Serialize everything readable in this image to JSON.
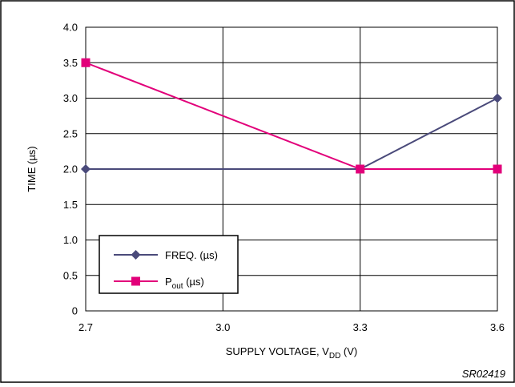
{
  "chart_data": {
    "type": "line",
    "x": [
      2.7,
      3.3,
      3.6
    ],
    "xlabel_main": "SUPPLY VOLTAGE, V",
    "xlabel_sub": "DD",
    "xlabel_tail": " (V)",
    "ylabel": "TIME (µs)",
    "xticks": [
      "2.7",
      "3.0",
      "3.3",
      "3.6"
    ],
    "xtick_values": [
      2.7,
      3.0,
      3.3,
      3.6
    ],
    "yticks": [
      "0",
      "0.5",
      "1.0",
      "1.5",
      "2.0",
      "2.5",
      "3.0",
      "3.5",
      "4.0"
    ],
    "ytick_values": [
      0,
      0.5,
      1.0,
      1.5,
      2.0,
      2.5,
      3.0,
      3.5,
      4.0
    ],
    "xlim": [
      2.7,
      3.6
    ],
    "ylim": [
      0,
      4.0
    ],
    "grid": "vertical and horizontal",
    "legend_position": "lower-left",
    "series": [
      {
        "name": "FREQ. (µs)",
        "legend_main": "FREQ. (µs)",
        "legend_sub": "",
        "legend_tail": "",
        "marker": "diamond",
        "color": "#4a4a7a",
        "values": [
          2.0,
          2.0,
          3.0
        ]
      },
      {
        "name": "Pout (µs)",
        "legend_main": "P",
        "legend_sub": "out",
        "legend_tail": " (µs)",
        "marker": "square",
        "color": "#e2007a",
        "values": [
          3.5,
          2.0,
          2.0
        ]
      }
    ],
    "figure_id": "SR02419"
  }
}
